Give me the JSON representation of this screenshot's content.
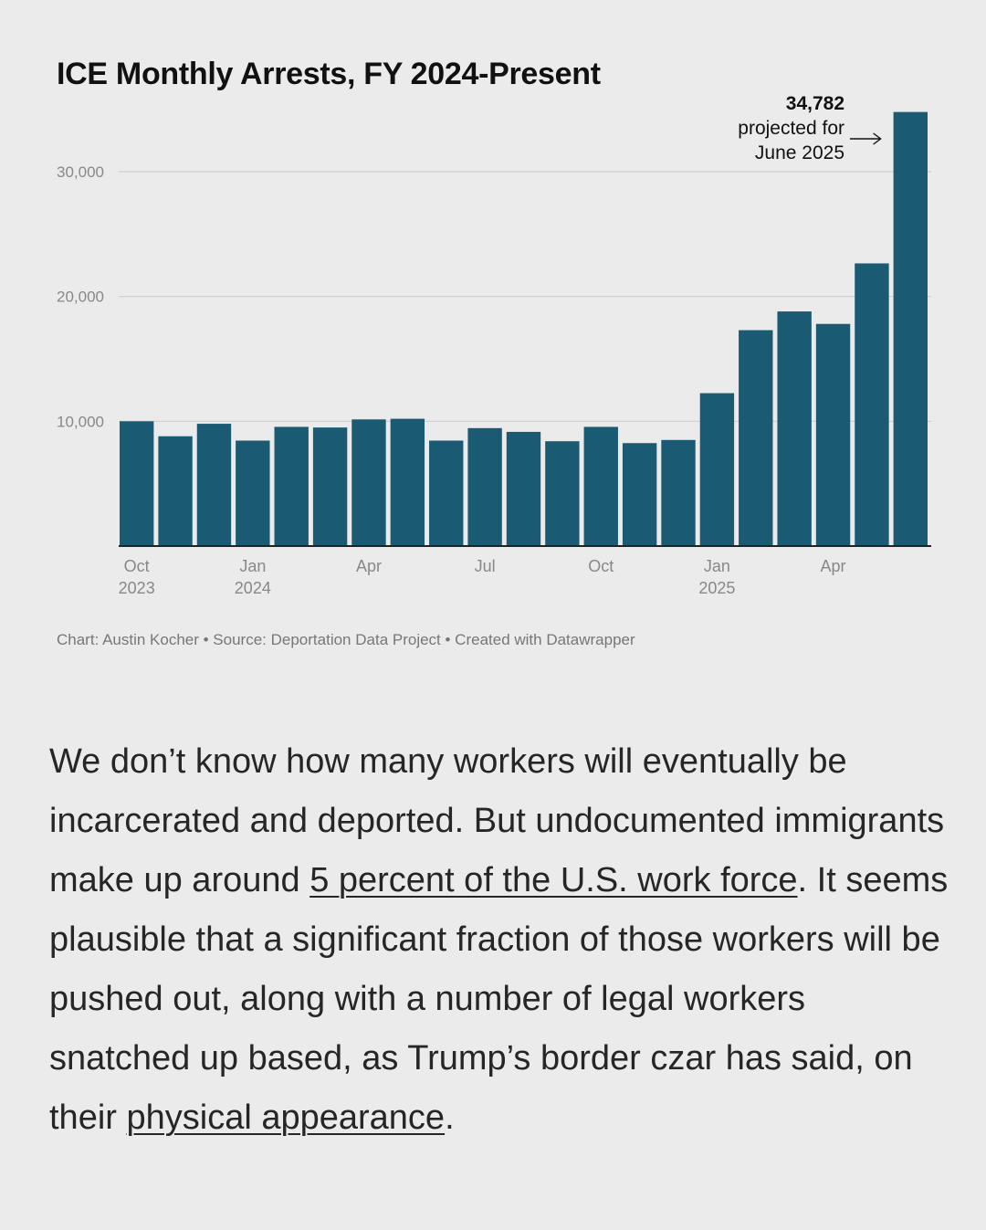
{
  "chart_data": {
    "type": "bar",
    "title": "ICE Monthly Arrests, FY 2024-Present",
    "xlabel": "",
    "ylabel": "",
    "ylim": [
      0,
      35000
    ],
    "yticks": [
      10000,
      20000,
      30000
    ],
    "ytick_labels": [
      "10,000",
      "20,000",
      "30,000"
    ],
    "grid": true,
    "bar_color": "#1b5a73",
    "categories": [
      "Oct 2023",
      "Nov 2023",
      "Dec 2023",
      "Jan 2024",
      "Feb 2024",
      "Mar 2024",
      "Apr 2024",
      "May 2024",
      "Jun 2024",
      "Jul 2024",
      "Aug 2024",
      "Sep 2024",
      "Oct 2024",
      "Nov 2024",
      "Dec 2024",
      "Jan 2025",
      "Feb 2025",
      "Mar 2025",
      "Apr 2025",
      "May 2025",
      "Jun 2025"
    ],
    "values": [
      10000,
      8800,
      9800,
      8450,
      9550,
      9500,
      10150,
      10200,
      8450,
      9450,
      9150,
      8400,
      9550,
      8250,
      8500,
      12250,
      17300,
      18800,
      17800,
      22650,
      34782
    ],
    "x_tick_labels": [
      {
        "index": 0,
        "month": "Oct",
        "year": "2023"
      },
      {
        "index": 3,
        "month": "Jan",
        "year": "2024"
      },
      {
        "index": 6,
        "month": "Apr",
        "year": ""
      },
      {
        "index": 9,
        "month": "Jul",
        "year": ""
      },
      {
        "index": 12,
        "month": "Oct",
        "year": ""
      },
      {
        "index": 15,
        "month": "Jan",
        "year": "2025"
      },
      {
        "index": 18,
        "month": "Apr",
        "year": ""
      }
    ],
    "annotation": {
      "value_label": "34,782",
      "line1": "projected for",
      "line2": "June 2025",
      "target_index": 20
    }
  },
  "source": {
    "text": "Chart: Austin Kocher • Source: Deportation Data Project • Created with Datawrapper"
  },
  "article": {
    "part1": "We don’t know how many workers will eventually be incarcerated and deported. But undocumented immigrants make up around ",
    "link1": "5 percent of the U.S. work force",
    "part2": ". It seems plausible that a significant fraction of those workers will be pushed out, along with a number of legal workers snatched up based, as Trump’s border czar has said, on their ",
    "link2": "physical appearance",
    "part3": "."
  }
}
